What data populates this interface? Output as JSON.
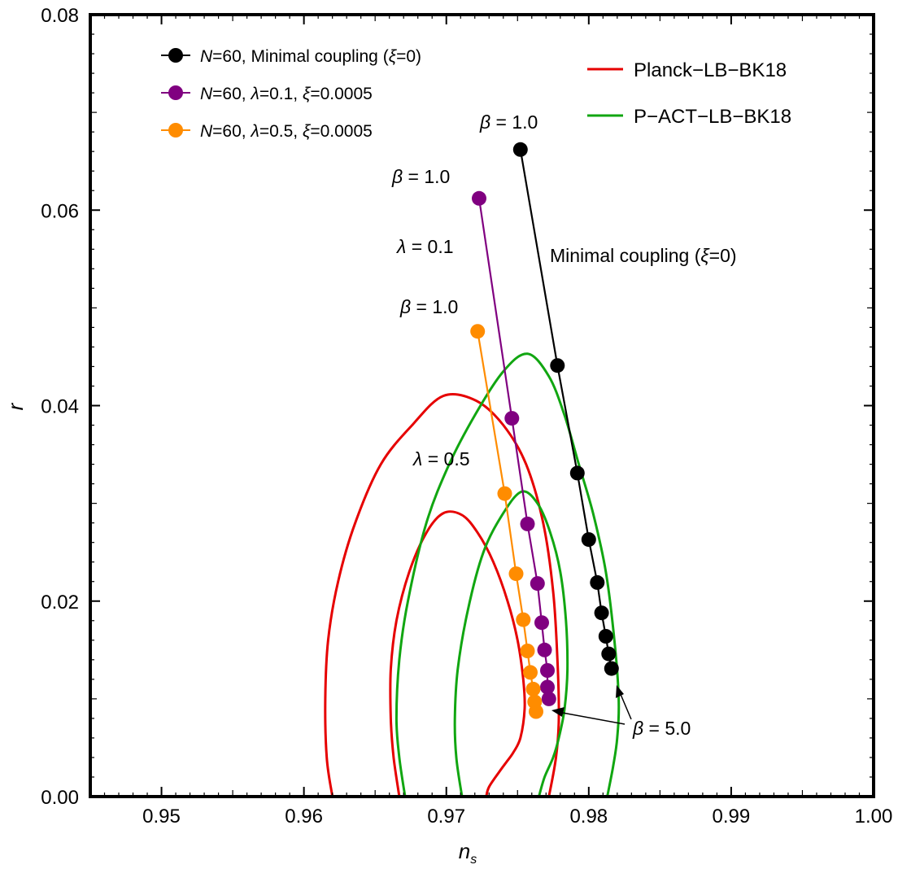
{
  "chart_data": {
    "type": "scatter",
    "title": "",
    "xlabel": "n",
    "xlabel_sub": "s",
    "ylabel": "r",
    "xlim": [
      0.945,
      1.0
    ],
    "ylim": [
      0.0,
      0.08
    ],
    "x_ticks": [
      0.95,
      0.96,
      0.97,
      0.98,
      0.99,
      1.0
    ],
    "x_tick_labels": [
      "0.95",
      "0.96",
      "0.97",
      "0.98",
      "0.99",
      "1.00"
    ],
    "y_ticks": [
      0.0,
      0.02,
      0.04,
      0.06,
      0.08
    ],
    "y_tick_labels": [
      "0.00",
      "0.02",
      "0.04",
      "0.06",
      "0.08"
    ],
    "grid": false,
    "series": [
      {
        "name": "N=60, Minimal coupling (ξ=0)",
        "label_prefix": "N",
        "label_rest": "=60, Minimal coupling (",
        "label_xi": "ξ",
        "label_tail": "=0)",
        "color": "#000000",
        "x": [
          0.9752,
          0.9778,
          0.9792,
          0.98,
          0.9806,
          0.9809,
          0.9812,
          0.9814,
          0.9816
        ],
        "y": [
          0.0662,
          0.0441,
          0.0331,
          0.0263,
          0.0219,
          0.0188,
          0.0164,
          0.0146,
          0.0131
        ]
      },
      {
        "name": "N=60, λ=0.1, ξ=0.0005",
        "label_prefix": "N",
        "label_mid1": "=60, ",
        "label_lambda": "λ",
        "label_mid2": "=0.1, ",
        "label_xi": "ξ",
        "label_tail": "=0.0005",
        "color": "#800080",
        "x": [
          0.9723,
          0.9746,
          0.9757,
          0.9764,
          0.9767,
          0.9769,
          0.9771,
          0.9771,
          0.9772
        ],
        "y": [
          0.0612,
          0.0387,
          0.0279,
          0.0218,
          0.0178,
          0.015,
          0.0129,
          0.0112,
          0.01
        ]
      },
      {
        "name": "N=60, λ=0.5, ξ=0.0005",
        "label_prefix": "N",
        "label_mid1": "=60, ",
        "label_lambda": "λ",
        "label_mid2": "=0.5, ",
        "label_xi": "ξ",
        "label_tail": "=0.0005",
        "color": "#ff8c00",
        "x": [
          0.9722,
          0.9741,
          0.9749,
          0.9754,
          0.9757,
          0.9759,
          0.9761,
          0.9762,
          0.9763
        ],
        "y": [
          0.0476,
          0.031,
          0.0228,
          0.0181,
          0.0149,
          0.0127,
          0.011,
          0.0097,
          0.0087
        ]
      }
    ],
    "contours": [
      {
        "name": "Planck-LB-BK18",
        "color": "#e60000",
        "level": "outer",
        "x": [
          0.962,
          0.9616,
          0.9615,
          0.9617,
          0.9624,
          0.9636,
          0.9654,
          0.9676,
          0.9698,
          0.9721,
          0.974,
          0.9756,
          0.9768,
          0.9775,
          0.9778,
          0.9779,
          0.9777,
          0.9772
        ],
        "y": [
          0.0,
          0.004,
          0.01,
          0.016,
          0.022,
          0.028,
          0.034,
          0.038,
          0.041,
          0.0405,
          0.038,
          0.034,
          0.028,
          0.021,
          0.014,
          0.008,
          0.004,
          0.0
        ]
      },
      {
        "name": "Planck-LB-BK18 inner",
        "color": "#e60000",
        "level": "inner",
        "x": [
          0.9667,
          0.9663,
          0.9661,
          0.9661,
          0.9665,
          0.9674,
          0.9686,
          0.9698,
          0.9711,
          0.9722,
          0.9733,
          0.9743,
          0.975,
          0.9754,
          0.9755,
          0.9752,
          0.9747,
          0.9742,
          0.9737,
          0.973,
          0.9728
        ],
        "y": [
          0.0,
          0.004,
          0.008,
          0.013,
          0.018,
          0.023,
          0.027,
          0.029,
          0.0288,
          0.027,
          0.024,
          0.02,
          0.016,
          0.012,
          0.009,
          0.006,
          0.0045,
          0.0035,
          0.0025,
          0.001,
          0.0
        ]
      },
      {
        "name": "P-ACT-LB-BK18",
        "color": "#11a611",
        "level": "outer",
        "x": [
          0.9671,
          0.9667,
          0.9665,
          0.9667,
          0.9673,
          0.9686,
          0.9702,
          0.972,
          0.974,
          0.9757,
          0.9772,
          0.9783,
          0.9793,
          0.9803,
          0.9812,
          0.9818,
          0.9821,
          0.982,
          0.9817,
          0.9813
        ],
        "y": [
          0.0,
          0.004,
          0.008,
          0.014,
          0.02,
          0.028,
          0.034,
          0.039,
          0.0435,
          0.0453,
          0.043,
          0.039,
          0.034,
          0.029,
          0.023,
          0.016,
          0.01,
          0.006,
          0.003,
          0.0
        ]
      },
      {
        "name": "P-ACT-LB-BK18 inner",
        "color": "#11a611",
        "level": "inner",
        "x": [
          0.9711,
          0.9707,
          0.9706,
          0.9708,
          0.9715,
          0.9726,
          0.974,
          0.9753,
          0.9764,
          0.9773,
          0.978,
          0.9784,
          0.9785,
          0.9783,
          0.9779,
          0.9775,
          0.9769,
          0.9765
        ],
        "y": [
          0.0,
          0.004,
          0.008,
          0.013,
          0.019,
          0.025,
          0.029,
          0.0312,
          0.03,
          0.027,
          0.023,
          0.018,
          0.013,
          0.009,
          0.006,
          0.004,
          0.002,
          0.0
        ]
      }
    ],
    "legend_right": [
      {
        "label": "Planck−LB−BK18",
        "color": "#e60000"
      },
      {
        "label": "P−ACT−LB−BK18",
        "color": "#11a611"
      }
    ],
    "legend_placement": "top-left and top-right",
    "annotations": {
      "beta_black": {
        "greek": "β",
        "text": " = 1.0",
        "at": [
          0.9752,
          0.0662
        ]
      },
      "beta_purple": {
        "greek": "β",
        "text": " = 1.0",
        "at": [
          0.9723,
          0.0612
        ]
      },
      "beta_orange": {
        "greek": "β",
        "text": " = 1.0",
        "at": [
          0.9722,
          0.0476
        ]
      },
      "lambda_01": {
        "greek": "λ",
        "text": " = 0.1",
        "at": [
          0.97,
          0.0563
        ]
      },
      "lambda_05": {
        "greek": "λ",
        "text": " = 0.5",
        "at": [
          0.9695,
          0.0345
        ]
      },
      "minimal": {
        "text_a": "Minimal coupling (",
        "greek": "ξ",
        "text_b": "=0)",
        "at": [
          0.9787,
          0.0545
        ]
      },
      "beta_end": {
        "greek": "β",
        "text": " = 5.0",
        "at": [
          0.9838,
          0.007
        ]
      }
    }
  }
}
